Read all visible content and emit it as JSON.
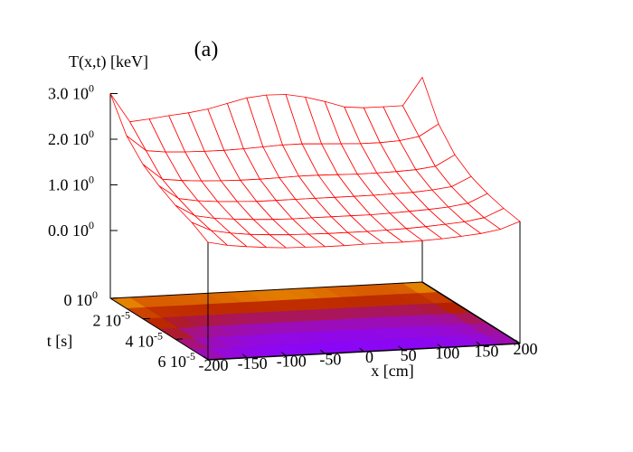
{
  "chart_data": {
    "type": "surface3d",
    "title": "(a)",
    "zlabel": "T(x,t) [keV]",
    "ylabel": "t [s]",
    "xlabel": "x [cm]",
    "surface_color": "#ff0000",
    "x": [
      -200,
      -175,
      -150,
      -125,
      -100,
      -75,
      -50,
      -25,
      0,
      25,
      50,
      75,
      100,
      125,
      150,
      175,
      200
    ],
    "t": [
      0,
      1e-05,
      2e-05,
      3e-05,
      4e-05,
      5e-05,
      6e-05
    ],
    "z": [
      [
        3.0,
        2.36,
        2.4,
        2.45,
        2.49,
        2.55,
        2.65,
        2.75,
        2.79,
        2.78,
        2.7,
        2.58,
        2.44,
        2.4,
        2.4,
        2.4,
        3.0
      ],
      [
        2.3,
        1.95,
        1.9,
        1.88,
        1.87,
        1.87,
        1.88,
        1.9,
        1.92,
        1.92,
        1.9,
        1.88,
        1.86,
        1.86,
        1.88,
        1.95,
        2.2
      ],
      [
        1.9,
        1.55,
        1.5,
        1.47,
        1.45,
        1.44,
        1.44,
        1.45,
        1.46,
        1.46,
        1.45,
        1.44,
        1.44,
        1.45,
        1.47,
        1.52,
        1.75
      ],
      [
        1.65,
        1.35,
        1.28,
        1.24,
        1.22,
        1.2,
        1.2,
        1.2,
        1.2,
        1.2,
        1.2,
        1.2,
        1.21,
        1.22,
        1.25,
        1.3,
        1.5
      ],
      [
        1.45,
        1.2,
        1.12,
        1.08,
        1.05,
        1.03,
        1.02,
        1.02,
        1.02,
        1.02,
        1.02,
        1.03,
        1.05,
        1.07,
        1.1,
        1.16,
        1.35
      ],
      [
        1.3,
        1.1,
        1.02,
        0.97,
        0.94,
        0.92,
        0.91,
        0.9,
        0.9,
        0.9,
        0.91,
        0.92,
        0.94,
        0.97,
        1.0,
        1.07,
        1.25
      ],
      [
        1.09,
        1.0,
        0.95,
        0.91,
        0.88,
        0.87,
        0.86,
        0.86,
        0.87,
        0.87,
        0.87,
        0.88,
        0.9,
        0.93,
        0.97,
        1.04,
        1.19
      ]
    ],
    "xlim": [
      -200,
      200
    ],
    "tlim": [
      0,
      6e-05
    ],
    "zlim": [
      0,
      3
    ],
    "xticks": [
      -200,
      -150,
      -100,
      -50,
      0,
      50,
      100,
      150,
      200
    ],
    "tticks": [
      {
        "value": 0,
        "label": "0 10",
        "sup": "0"
      },
      {
        "value": 2e-05,
        "label": "2 10",
        "sup": "-5"
      },
      {
        "value": 4e-05,
        "label": "4 10",
        "sup": "-5"
      },
      {
        "value": 6e-05,
        "label": "6 10",
        "sup": "-5"
      }
    ],
    "zticks": [
      {
        "value": 0,
        "label": "0.0 10",
        "sup": "0"
      },
      {
        "value": 1,
        "label": "1.0 10",
        "sup": "0"
      },
      {
        "value": 2,
        "label": "2.0 10",
        "sup": "0"
      },
      {
        "value": 3,
        "label": "3.0 10",
        "sup": "0"
      }
    ]
  }
}
